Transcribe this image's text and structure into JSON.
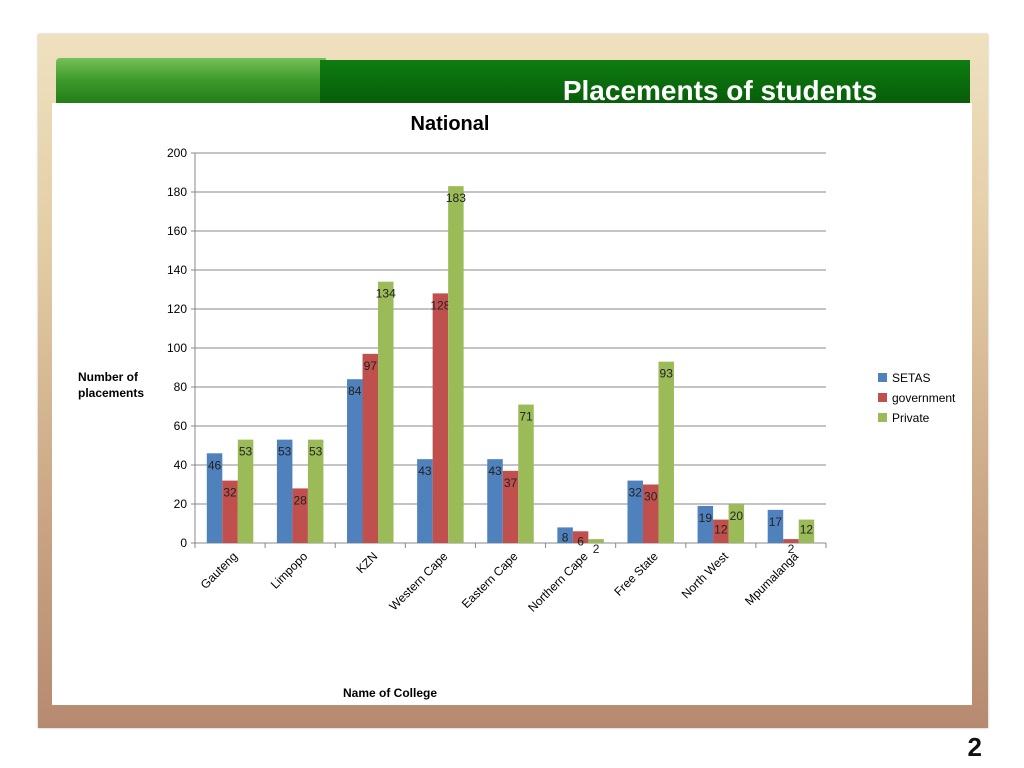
{
  "slide": {
    "title": "Placements of students",
    "page_number": "2"
  },
  "chart_data": {
    "type": "bar",
    "title": "National",
    "xlabel": "Name of College",
    "ylabel": "Number of placements",
    "ylim": [
      0,
      200
    ],
    "yticks": [
      0,
      20,
      40,
      60,
      80,
      100,
      120,
      140,
      160,
      180,
      200
    ],
    "grid": true,
    "legend_position": "right",
    "categories": [
      "Gauteng",
      "Limpopo",
      "KZN",
      "Western Cape",
      "Eastern Cape",
      "Northern Cape",
      "Free State",
      "North West",
      "Mpumalanga"
    ],
    "series": [
      {
        "name": "SETAS",
        "color": "#4f81bd",
        "values": [
          46,
          53,
          84,
          43,
          43,
          8,
          32,
          19,
          17
        ]
      },
      {
        "name": "government",
        "color": "#c0504d",
        "values": [
          32,
          28,
          97,
          128,
          37,
          6,
          30,
          12,
          2
        ]
      },
      {
        "name": "Private",
        "color": "#9bbb59",
        "values": [
          53,
          53,
          134,
          183,
          71,
          2,
          93,
          20,
          12
        ]
      }
    ]
  }
}
